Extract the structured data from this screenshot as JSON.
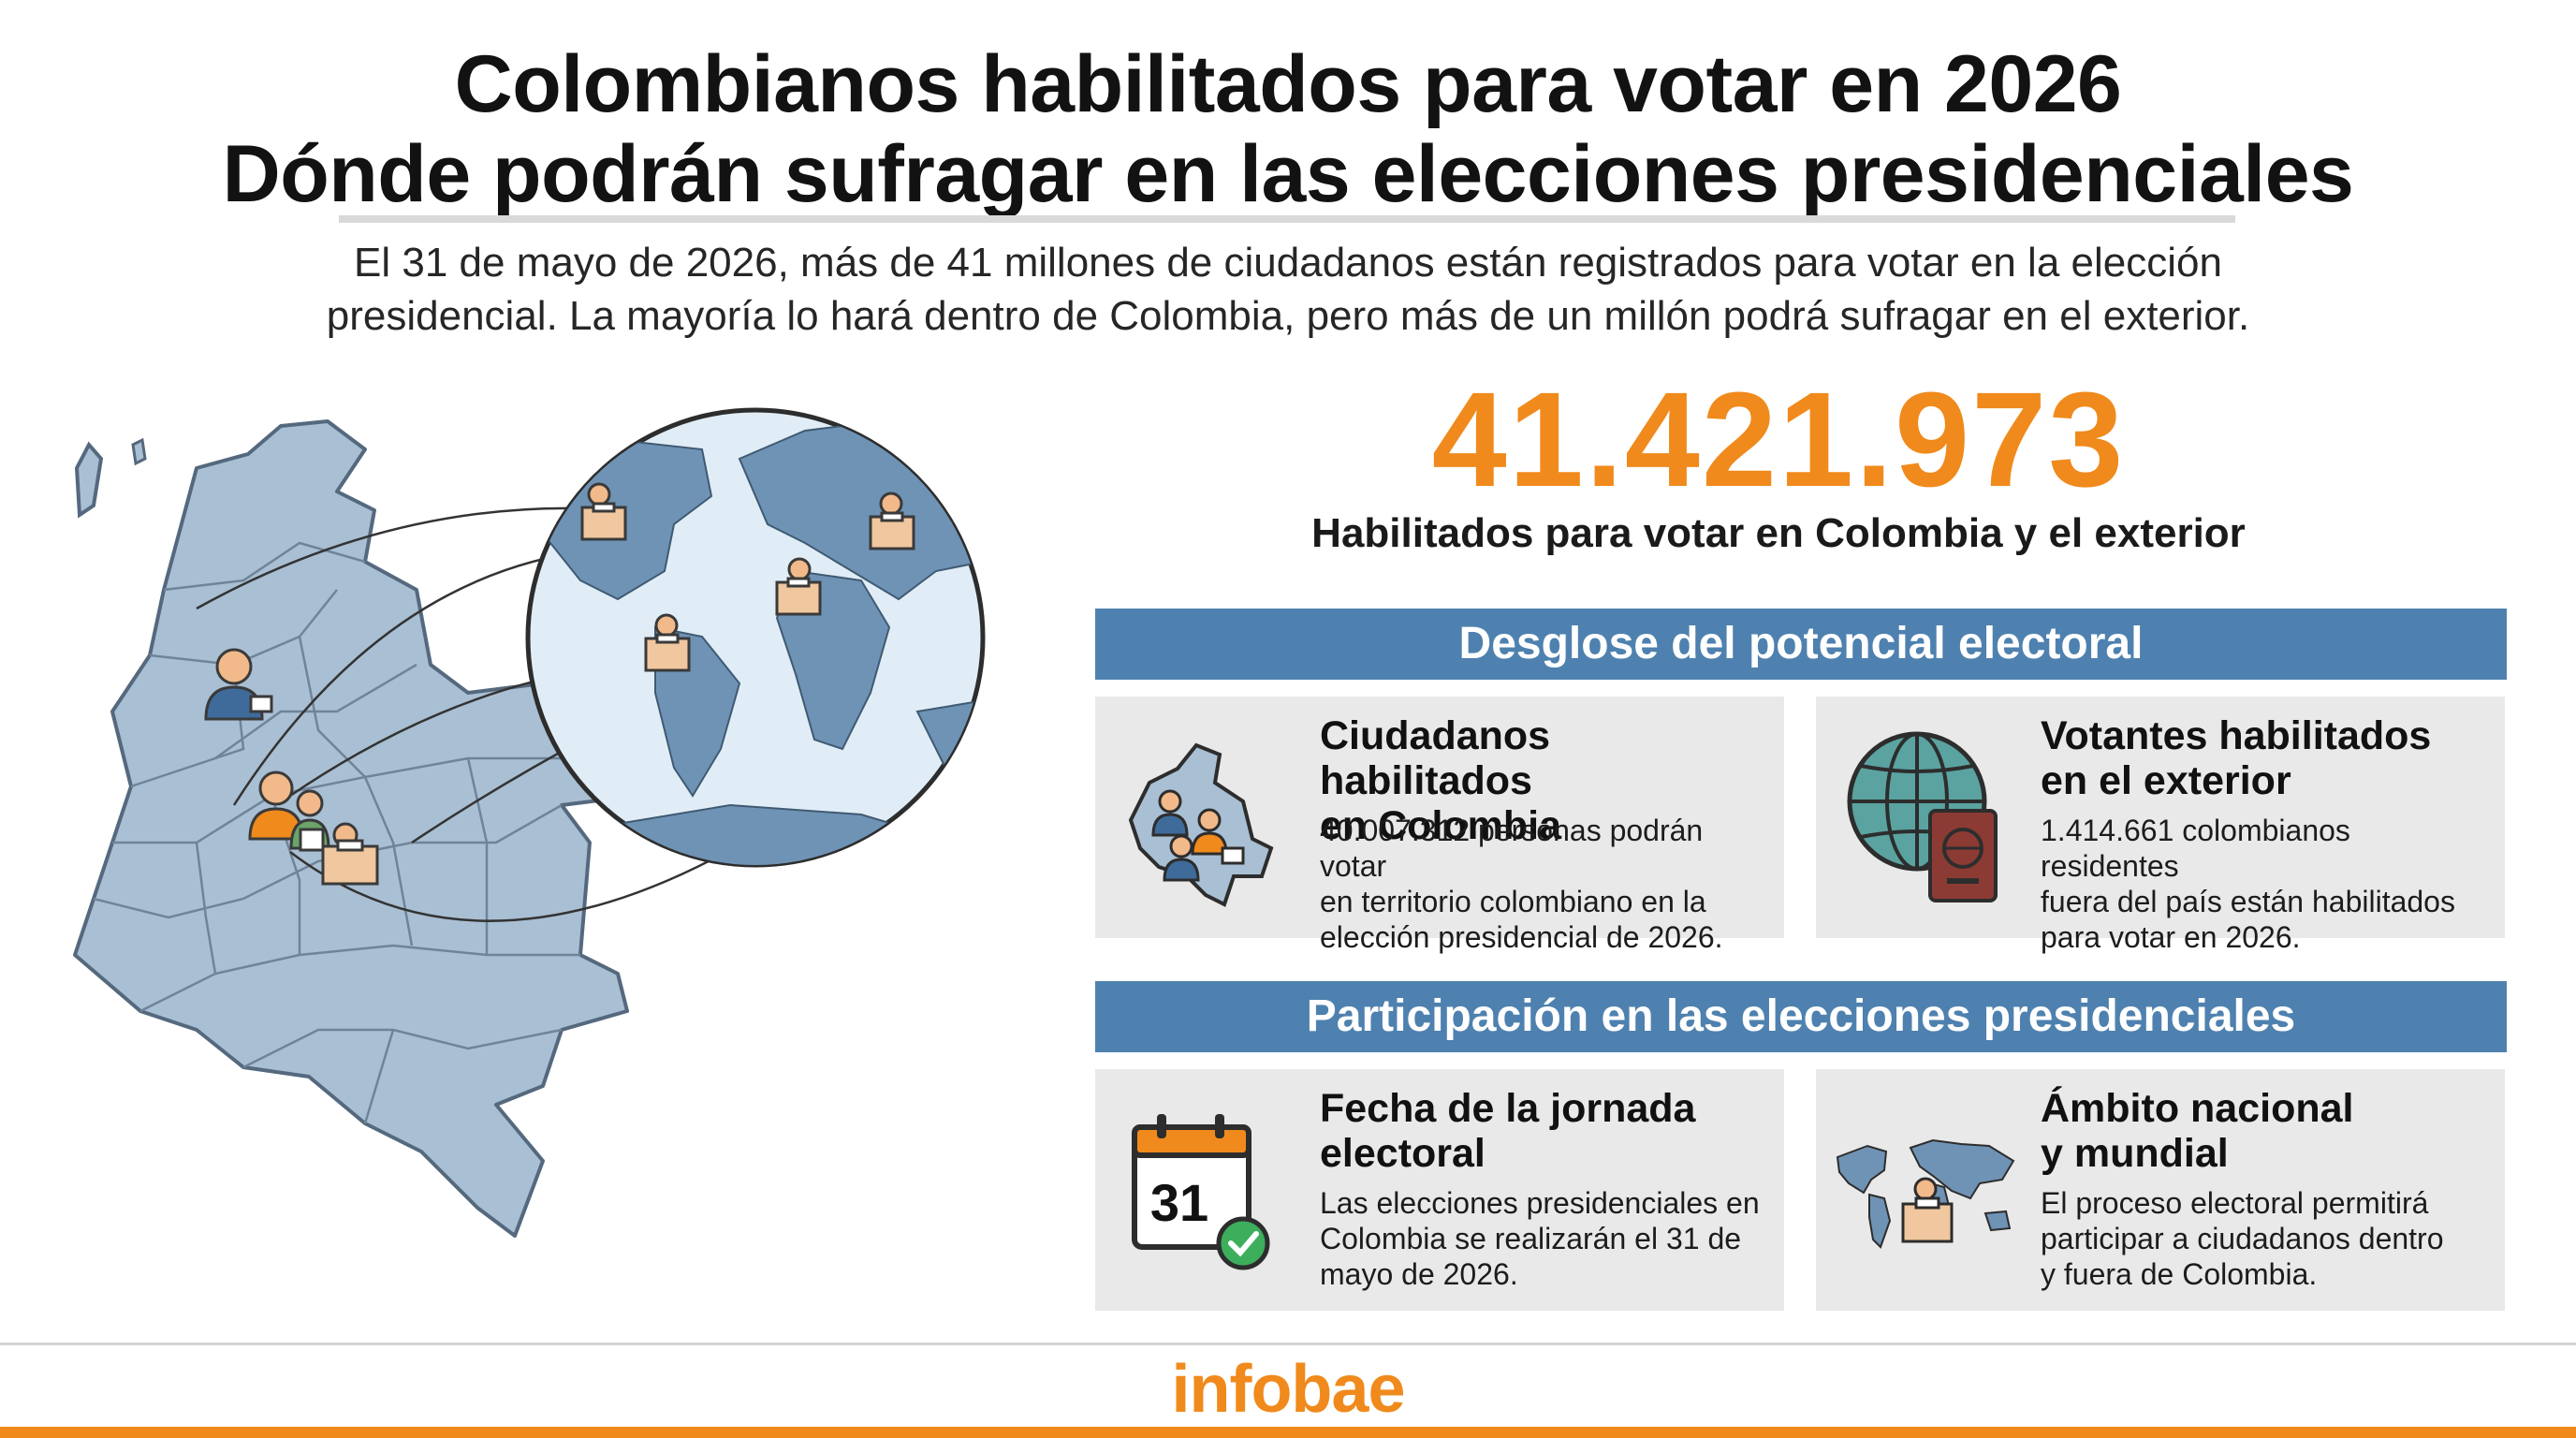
{
  "header": {
    "title_line1": "Colombianos habilitados para votar en 2026",
    "title_line2": "Dónde podrán sufragar en las elecciones presidenciales",
    "intro_line1": "El 31 de mayo de 2026, más de 41 millones de ciudadanos están registrados para votar en la elección",
    "intro_line2": "presidencial. La mayoría lo hará dentro de Colombia, pero más de un millón podrá sufragar en el exterior."
  },
  "highlight": {
    "number": "41.421.973",
    "label": "Habilitados para votar en Colombia y el exterior"
  },
  "section1": {
    "title": "Desglose del potencial electoral",
    "cards": [
      {
        "icon": "colombia-voters-icon",
        "title_line1": "Ciudadanos habilitados",
        "title_line2": "en Colombia",
        "text_line1": "40.007.312 personas podrán votar",
        "text_line2": "en territorio colombiano en la",
        "text_line3": "elección presidencial de 2026."
      },
      {
        "icon": "globe-passport-icon",
        "title_line1": "Votantes habilitados",
        "title_line2": "en el exterior",
        "text_line1": "1.414.661 colombianos residentes",
        "text_line2": "fuera del país están habilitados",
        "text_line3": "para votar en 2026."
      }
    ]
  },
  "section2": {
    "title": "Participación en las elecciones presidenciales",
    "cards": [
      {
        "icon": "calendar-check-icon",
        "calendar_day": "31",
        "title_line1": "Fecha de la jornada",
        "title_line2": "electoral",
        "text_line1": "Las elecciones presidenciales en",
        "text_line2": "Colombia se realizarán el 31 de",
        "text_line3": "mayo de 2026."
      },
      {
        "icon": "world-map-ballot-icon",
        "title_line1": "Ámbito nacional",
        "title_line2": "y mundial",
        "text_line1": "El proceso electoral permitirá",
        "text_line2": "participar a ciudadanos dentro",
        "text_line3": "y fuera de Colombia."
      }
    ]
  },
  "footer": {
    "brand": "infobae"
  },
  "colors": {
    "accent_orange": "#f08a1c",
    "band_blue": "#4e81af",
    "map_blue": "#a9bfd3",
    "card_gray": "#e9e9e9"
  }
}
